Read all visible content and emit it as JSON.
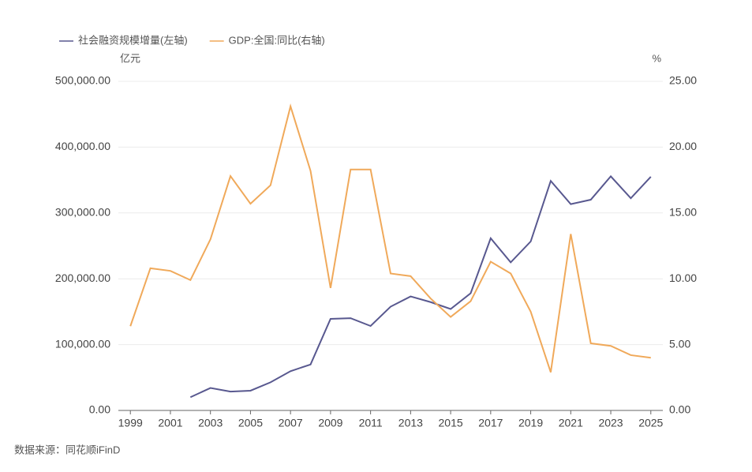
{
  "chart_data": {
    "type": "line",
    "source": "数据来源：同花顺iFinD",
    "y_unit": "亿元",
    "y2_unit": "%",
    "x": [
      1999,
      2000,
      2001,
      2002,
      2003,
      2004,
      2005,
      2006,
      2007,
      2008,
      2009,
      2010,
      2011,
      2012,
      2013,
      2014,
      2015,
      2016,
      2017,
      2018,
      2019,
      2020,
      2021,
      2022,
      2023,
      2024,
      2025
    ],
    "series": [
      {
        "name": "社会融资规模增量(左轴)",
        "color": "#58588f",
        "axis": "y",
        "values": [
          null,
          null,
          null,
          20112,
          34113,
          28629,
          30008,
          42696,
          59663,
          69802,
          139104,
          140191,
          128286,
          157631,
          173169,
          164571,
          154086,
          178022,
          261536,
          224920,
          256735,
          348634,
          313408,
          320101,
          355644,
          322300,
          355000
        ]
      },
      {
        "name": "GDP:全国:同比(右轴)",
        "color": "#f0a95a",
        "axis": "y2",
        "values": [
          6.4,
          10.8,
          10.6,
          9.9,
          13.0,
          17.8,
          15.7,
          17.1,
          23.1,
          18.2,
          9.3,
          18.3,
          18.3,
          10.4,
          10.2,
          8.5,
          7.1,
          8.3,
          11.3,
          10.4,
          7.5,
          2.9,
          13.4,
          5.1,
          4.9,
          4.2,
          4.0
        ]
      }
    ],
    "xlim": [
      1998.4,
      2025.6
    ],
    "xticks": [
      1999,
      2001,
      2003,
      2005,
      2007,
      2009,
      2011,
      2013,
      2015,
      2017,
      2019,
      2021,
      2023,
      2025
    ],
    "ylim": [
      0,
      500000
    ],
    "yticks": [
      {
        "value": 0,
        "label": "0.00"
      },
      {
        "value": 100000,
        "label": "100,000.00"
      },
      {
        "value": 200000,
        "label": "200,000.00"
      },
      {
        "value": 300000,
        "label": "300,000.00"
      },
      {
        "value": 400000,
        "label": "400,000.00"
      },
      {
        "value": 500000,
        "label": "500,000.00"
      }
    ],
    "y2lim": [
      0,
      25
    ],
    "y2ticks": [
      {
        "value": 0,
        "label": "0.00"
      },
      {
        "value": 5,
        "label": "5.00"
      },
      {
        "value": 10,
        "label": "10.00"
      },
      {
        "value": 15,
        "label": "15.00"
      },
      {
        "value": 20,
        "label": "20.00"
      },
      {
        "value": 25,
        "label": "25.00"
      }
    ],
    "grid": true,
    "legend": "top-left"
  }
}
